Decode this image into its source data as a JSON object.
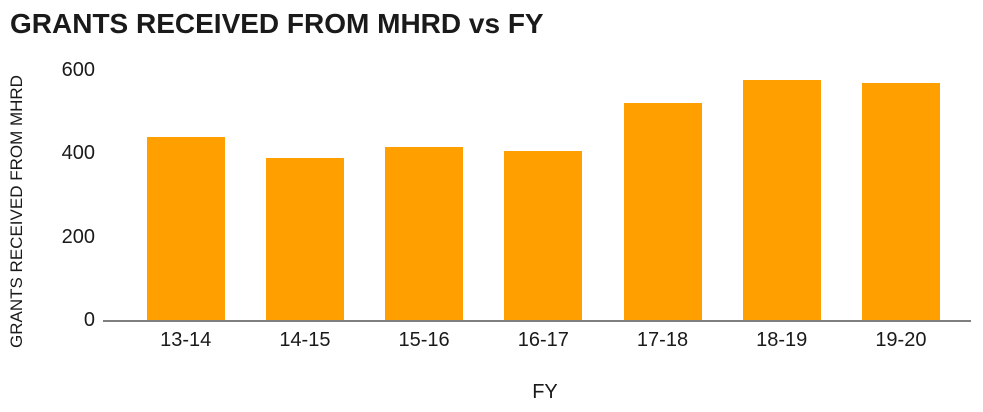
{
  "chart_data": {
    "type": "bar",
    "title": "GRANTS RECEIVED FROM MHRD vs FY",
    "xlabel": "FY",
    "ylabel": "GRANTS RECEIVED FROM MHRD",
    "categories": [
      "13-14",
      "14-15",
      "15-16",
      "16-17",
      "17-18",
      "18-19",
      "19-20"
    ],
    "values": [
      440,
      390,
      415,
      405,
      520,
      575,
      570
    ],
    "yticks": [
      0,
      200,
      400,
      600
    ],
    "ylim": [
      0,
      600
    ],
    "grid": false,
    "legend": "none",
    "colors": {
      "bar": "#FFA000",
      "axis": "#7F7F7F",
      "text": "#1A1A1A",
      "background": "#FFFFFF"
    }
  }
}
